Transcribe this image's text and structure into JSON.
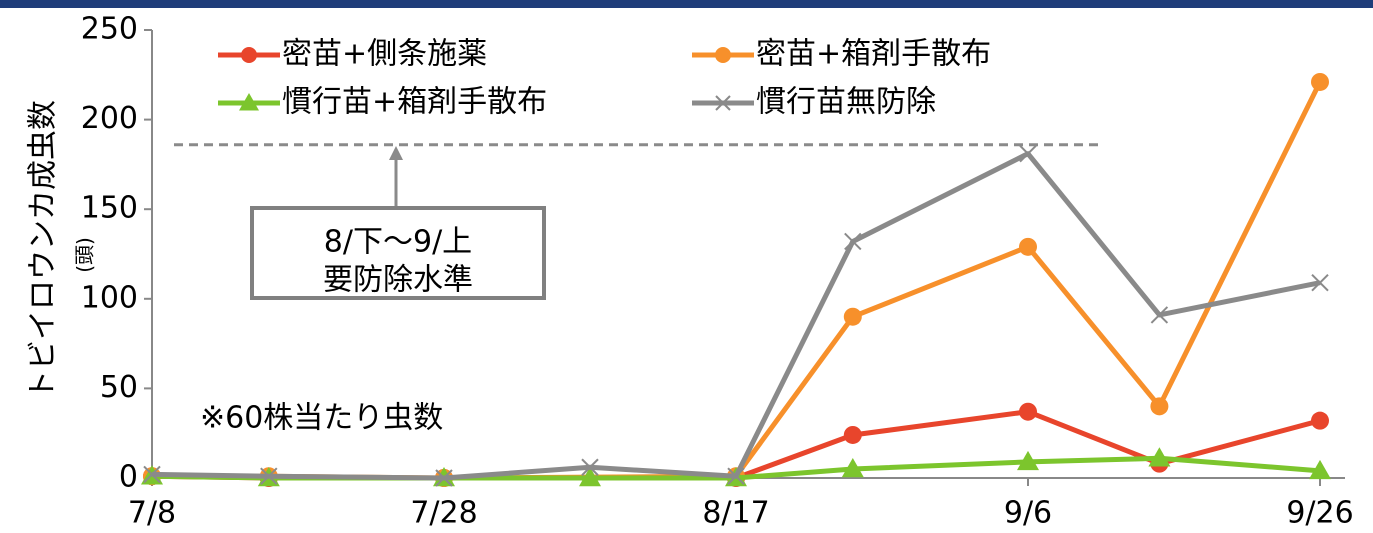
{
  "colors": {
    "background": "#ffffff",
    "top_border": "#1f3d7a",
    "axis": "#888888",
    "threshold_line": "#8a8a8a",
    "annotation_box": "#808080"
  },
  "chart_data": {
    "type": "line",
    "title": "",
    "ylabel": "トビイロウンカ成虫数",
    "ylabel_unit": "(頭)",
    "xlabel": "",
    "ylim": [
      0,
      250
    ],
    "yticks": [
      0,
      50,
      100,
      150,
      200,
      250
    ],
    "xticks": [
      {
        "value": 0,
        "label": "7/8"
      },
      {
        "value": 20,
        "label": "7/28"
      },
      {
        "value": 40,
        "label": "8/17"
      },
      {
        "value": 60,
        "label": "9/6"
      },
      {
        "value": 80,
        "label": "9/26"
      }
    ],
    "xlim": [
      0,
      80
    ],
    "grid": false,
    "legend_position": "top",
    "series": [
      {
        "name": "密苗+側条施薬",
        "color": "#e8452c",
        "marker": "circle",
        "x": [
          0,
          8,
          20,
          40,
          48,
          60,
          69,
          80
        ],
        "y": [
          1,
          0,
          0,
          0,
          24,
          37,
          8,
          32
        ]
      },
      {
        "name": "密苗+箱剤手散布",
        "color": "#f7902b",
        "marker": "circle",
        "x": [
          0,
          8,
          20,
          40,
          48,
          60,
          69,
          80
        ],
        "y": [
          1,
          1,
          0,
          1,
          90,
          129,
          40,
          221
        ]
      },
      {
        "name": "慣行苗+箱剤手散布",
        "color": "#7cc52d",
        "marker": "triangle",
        "x": [
          0,
          8,
          20,
          30,
          40,
          48,
          60,
          69,
          80
        ],
        "y": [
          1,
          0,
          0,
          0,
          0,
          5,
          9,
          11,
          4
        ]
      },
      {
        "name": "慣行苗無防除",
        "color": "#8a8a8a",
        "marker": "x",
        "x": [
          0,
          8,
          20,
          30,
          40,
          48,
          60,
          69,
          80
        ],
        "y": [
          2,
          1,
          0,
          6,
          1,
          132,
          181,
          91,
          109
        ]
      }
    ],
    "threshold": {
      "value": 186,
      "x_start": 0,
      "x_end": 65,
      "label_lines": [
        "8/下～9/上",
        "要防除水準"
      ]
    },
    "note": "※60株当たり虫数"
  }
}
